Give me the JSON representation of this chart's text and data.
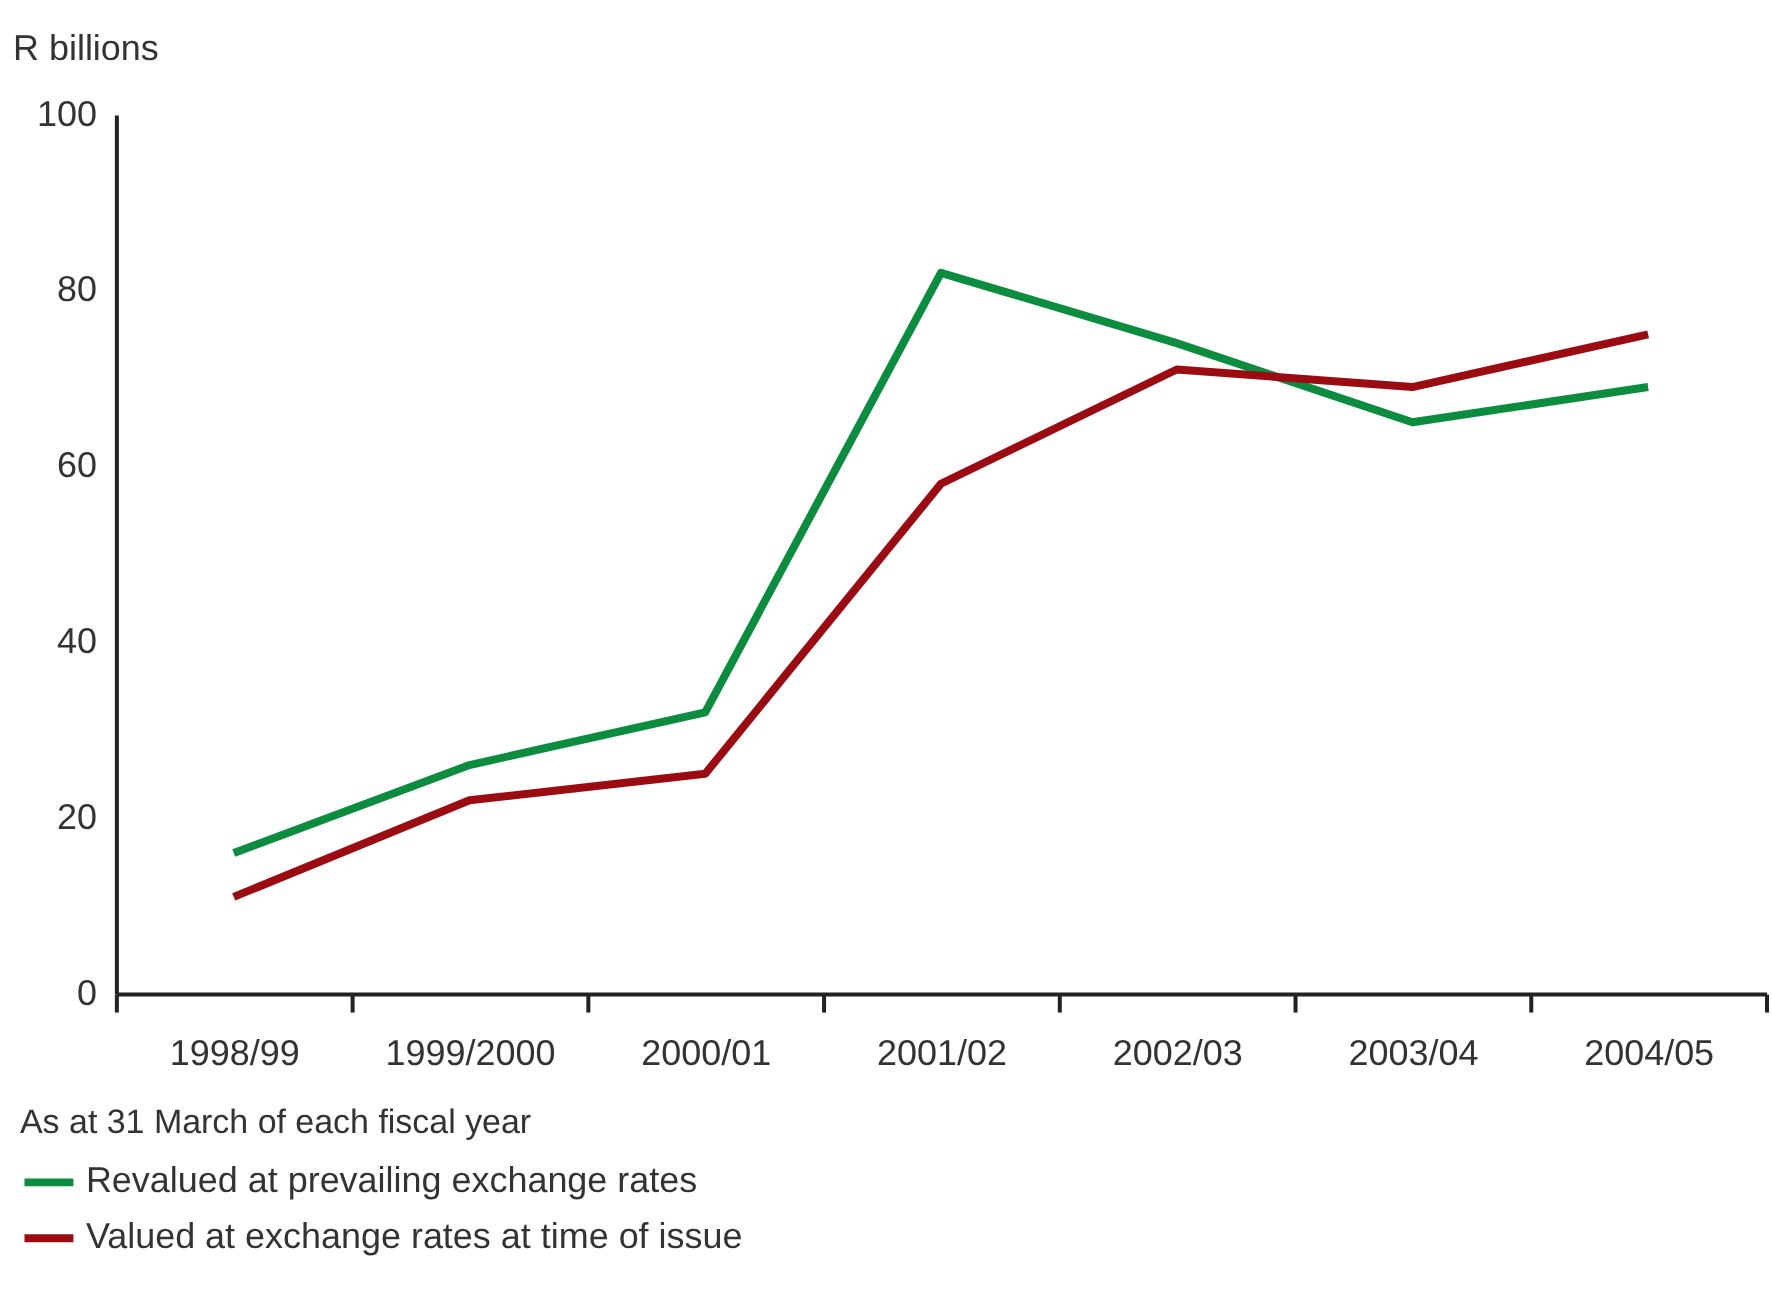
{
  "chart_data": {
    "type": "line",
    "ylabel": "R billions",
    "legend_title": "As at 31 March of each fiscal year",
    "categories": [
      "1998/99",
      "1999/2000",
      "2000/01",
      "2001/02",
      "2002/03",
      "2003/04",
      "2004/05"
    ],
    "series": [
      {
        "name": "Revalued at prevailing exchange rates",
        "color": "#0b8c3f",
        "values": [
          16,
          26,
          32,
          82,
          74,
          65,
          69
        ]
      },
      {
        "name": "Valued at exchange rates at time of issue",
        "color": "#9b0c12",
        "values": [
          11,
          22,
          25,
          58,
          71,
          69,
          75
        ]
      }
    ],
    "ylim": [
      0,
      100
    ],
    "yticks": [
      0,
      20,
      40,
      60,
      80,
      100
    ],
    "grid": false,
    "legend": "bottom left",
    "marker": "none",
    "line_style": "solid"
  }
}
